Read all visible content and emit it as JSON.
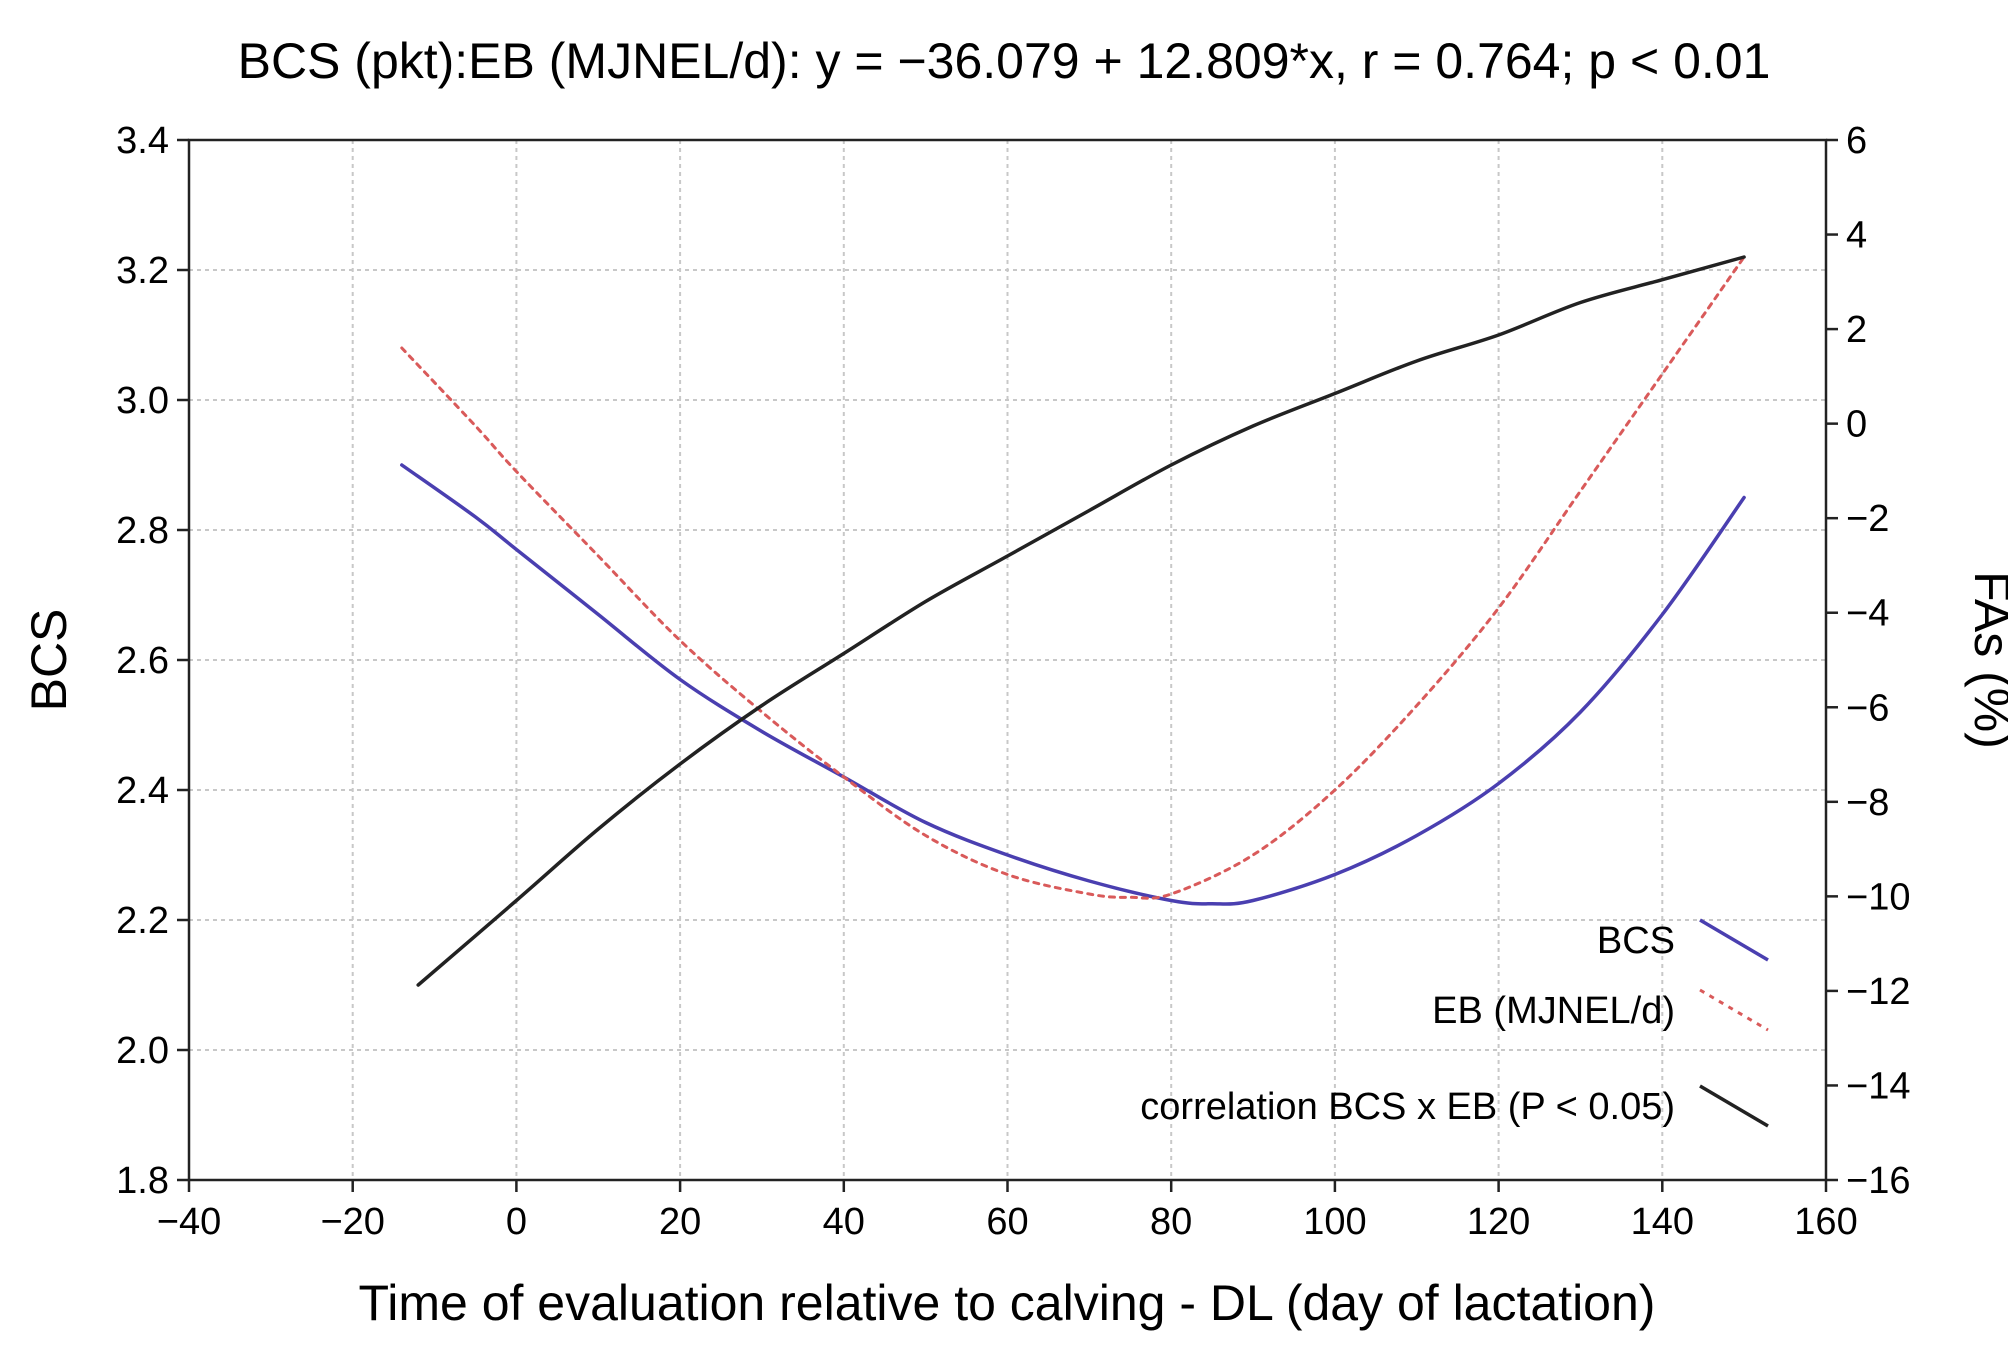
{
  "chart_data": {
    "type": "line",
    "title": "BCS (pkt):EB (MJNEL/d): y = −36.079 + 12.809*x, r = 0.764; p < 0.01",
    "xlabel": "Time of evaluation relative to calving - DL (day of lactation)",
    "ylabel": "BCS",
    "y2label": "FAs (%)",
    "xlim": [
      -40,
      160
    ],
    "ylim": [
      1.8,
      3.4
    ],
    "y2lim": [
      -16,
      6
    ],
    "x_ticks": [
      -40,
      -20,
      0,
      20,
      40,
      60,
      80,
      100,
      120,
      140,
      160
    ],
    "x_tick_labels": [
      "−40",
      "−20",
      "0",
      "20",
      "40",
      "60",
      "80",
      "100",
      "120",
      "140",
      "160"
    ],
    "y_ticks": [
      1.8,
      2.0,
      2.2,
      2.4,
      2.6,
      2.8,
      3.0,
      3.2,
      3.4
    ],
    "y_tick_labels": [
      "1.8",
      "2.0",
      "2.2",
      "2.4",
      "2.6",
      "2.8",
      "3.0",
      "3.2",
      "3.4"
    ],
    "y2_ticks": [
      -16,
      -14,
      -12,
      -10,
      -8,
      -6,
      -4,
      -2,
      0,
      2,
      4,
      6
    ],
    "y2_tick_labels": [
      "−16",
      "−14",
      "−12",
      "−10",
      "−8",
      "−6",
      "−4",
      "−2",
      "0",
      "2",
      "4",
      "6"
    ],
    "grid": true,
    "legend_position": "bottom-right",
    "series": [
      {
        "name": "BCS",
        "color": "#4a3fb0",
        "style": "solid",
        "x": [
          -14,
          -5,
          0,
          10,
          20,
          30,
          40,
          50,
          60,
          70,
          80,
          85,
          90,
          100,
          110,
          120,
          130,
          140,
          150
        ],
        "y": [
          2.9,
          2.82,
          2.77,
          2.67,
          2.57,
          2.49,
          2.42,
          2.35,
          2.3,
          2.26,
          2.23,
          2.225,
          2.23,
          2.27,
          2.33,
          2.41,
          2.52,
          2.67,
          2.85
        ]
      },
      {
        "name": "EB (MJNEL/d)",
        "color": "#d95a5a",
        "style": "dotted",
        "x": [
          -14,
          -5,
          0,
          10,
          20,
          30,
          40,
          50,
          60,
          70,
          75,
          80,
          90,
          100,
          110,
          120,
          130,
          140,
          150
        ],
        "y": [
          3.08,
          2.96,
          2.89,
          2.76,
          2.63,
          2.52,
          2.42,
          2.33,
          2.27,
          2.24,
          2.235,
          2.24,
          2.3,
          2.4,
          2.53,
          2.68,
          2.86,
          3.04,
          3.22
        ]
      },
      {
        "name": "correlation BCS x EB (P < 0.05)",
        "color": "#222222",
        "style": "solid",
        "x": [
          -12,
          0,
          10,
          20,
          30,
          40,
          50,
          60,
          70,
          80,
          90,
          100,
          110,
          120,
          130,
          140,
          150
        ],
        "y": [
          2.1,
          2.23,
          2.34,
          2.44,
          2.53,
          2.61,
          2.69,
          2.76,
          2.83,
          2.9,
          2.96,
          3.01,
          3.06,
          3.1,
          3.15,
          3.185,
          3.22
        ]
      }
    ]
  }
}
